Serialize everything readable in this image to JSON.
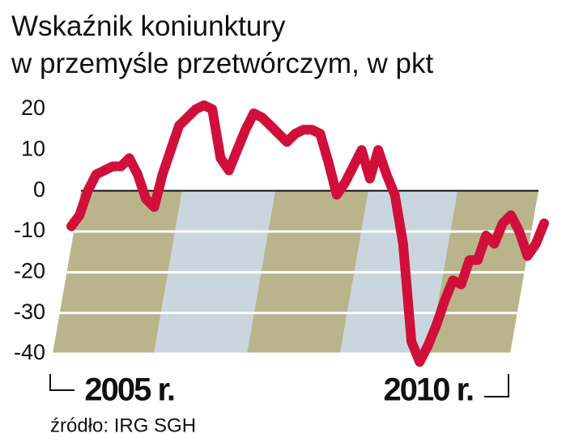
{
  "chart_data": {
    "type": "line",
    "title": "Wskaźnik koniunktury",
    "subtitle": "w przemyśle przetwórczym, w pkt",
    "source": "źródło: IRG SGH",
    "categories": [
      null,
      null,
      null,
      null,
      null,
      null,
      null,
      "2005 r.",
      null,
      null,
      null,
      null,
      null,
      null,
      null,
      null,
      null,
      null,
      null,
      null,
      null,
      null,
      null,
      null,
      null,
      null,
      null,
      null,
      null,
      null,
      null,
      null,
      null,
      null,
      null,
      null,
      null,
      null,
      null,
      null,
      null,
      null,
      null,
      null,
      "2010 r.",
      null,
      null,
      null,
      null,
      null,
      null,
      null,
      null,
      null,
      null,
      null,
      null,
      null
    ],
    "series": [
      {
        "name": "Wskaźnik koniunktury",
        "color": "#d0103a",
        "values": [
          -8.7,
          -6,
          0,
          4,
          5,
          6,
          6,
          8,
          4,
          -2,
          -4,
          4,
          10,
          16,
          18,
          20,
          21,
          20,
          8,
          5,
          10,
          15,
          19,
          18,
          16,
          14,
          12,
          14,
          15,
          15,
          14,
          7,
          -1,
          2,
          6,
          10,
          3,
          10,
          4,
          -1,
          -13,
          -37,
          -42,
          -38,
          -33,
          -27,
          -22,
          -23,
          -17,
          -17,
          -11,
          -13,
          -8,
          -6,
          -10,
          -16,
          -13,
          -8
        ]
      }
    ],
    "ylim": [
      -40,
      20
    ],
    "yticks": [
      -40,
      -30,
      -20,
      -10,
      0,
      10,
      20
    ],
    "grid": true
  }
}
